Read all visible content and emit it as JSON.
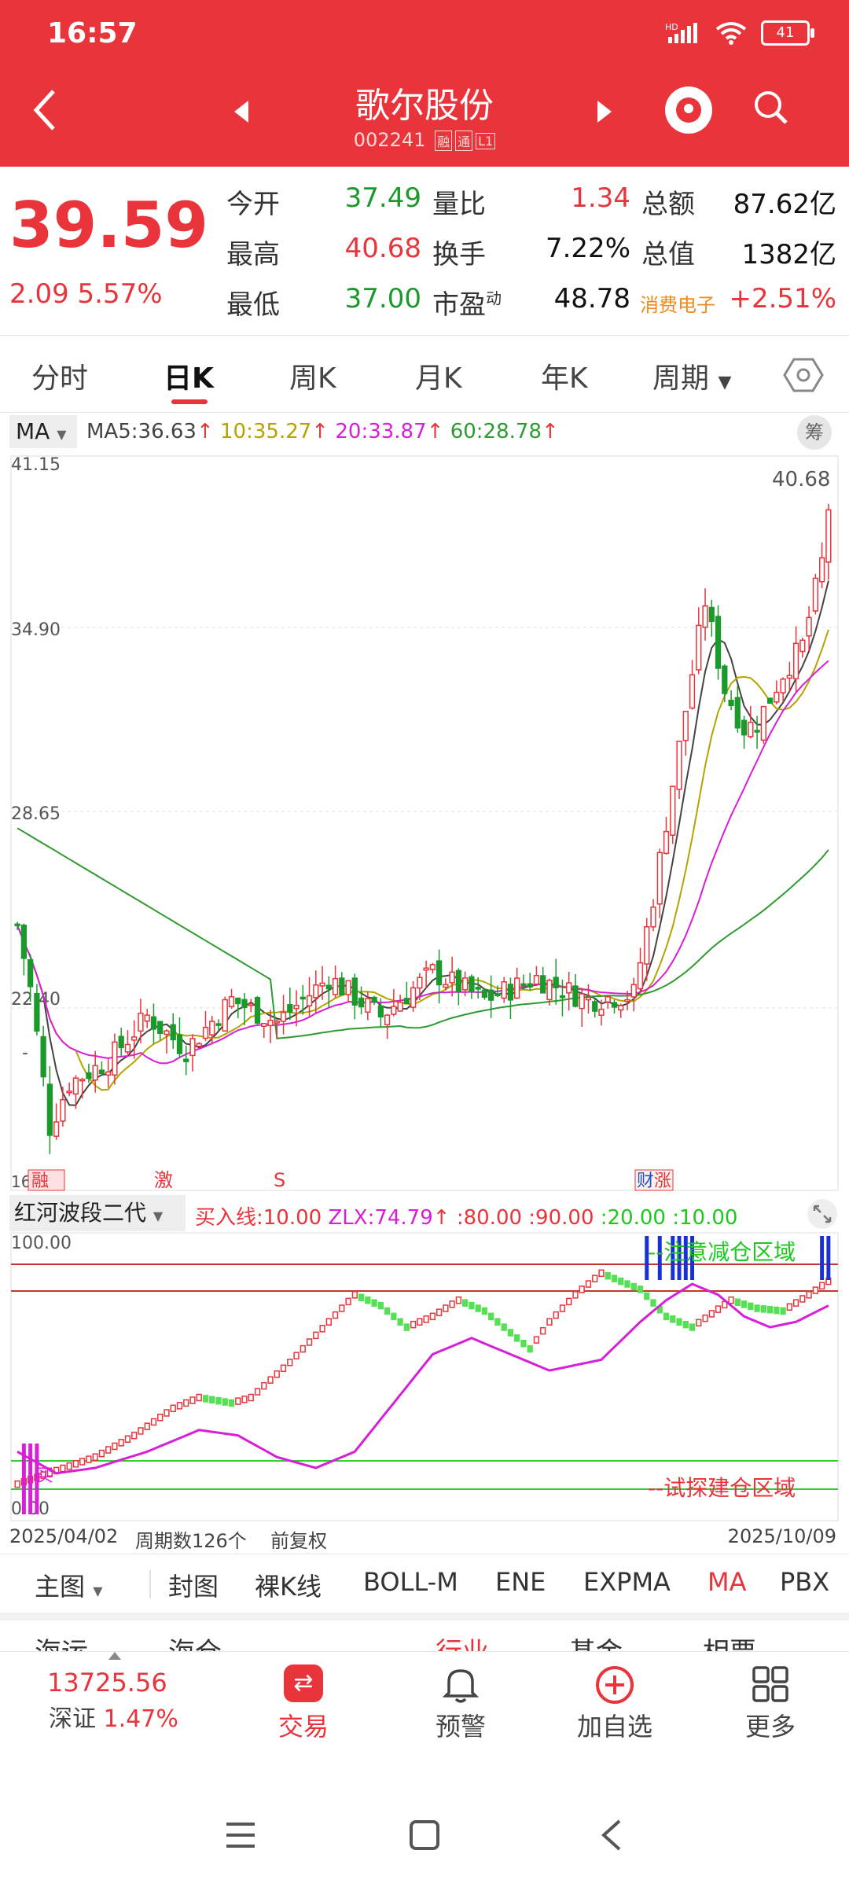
{
  "status": {
    "time": "16:57",
    "battery": "41",
    "network": "HD"
  },
  "header": {
    "title": "歌尔股份",
    "code": "002241",
    "tags": [
      "融",
      "通",
      "L1"
    ]
  },
  "quote": {
    "price": "39.59",
    "change": "2.09 5.57%",
    "rows": [
      {
        "l1": "今开",
        "v1": "37.49",
        "l2": "量比",
        "v2": "1.34",
        "l3": "总额",
        "v3": "87.62亿"
      },
      {
        "l1": "最高",
        "v1": "40.68",
        "l2": "换手",
        "v2": "7.22%",
        "l3": "总值",
        "v3": "1382亿"
      },
      {
        "l1": "最低",
        "v1": "37.00",
        "l2": "市盈",
        "v2": "48.78",
        "l3": "消费电子",
        "v3": "+2.51%"
      }
    ],
    "pe_sup": "动"
  },
  "tabs": [
    "分时",
    "日K",
    "周K",
    "月K",
    "年K",
    "周期"
  ],
  "ma": {
    "select": "MA",
    "ma5": "MA5:36.63",
    "ma10": "10:35.27",
    "ma20": "20:33.87",
    "ma60": "60:28.78",
    "chou": "筹",
    "colors": {
      "ma5": "#444444",
      "ma10": "#b5a300",
      "ma20": "#d61fd6",
      "ma60": "#2f9a2f"
    }
  },
  "kchart": {
    "y_labels": [
      "41.15",
      "34.90",
      "28.65",
      "22.40",
      "-"
    ],
    "y_values": [
      41.15,
      34.9,
      28.65,
      22.4
    ],
    "high_label": "40.68",
    "low_label": "16",
    "markers": [
      "融",
      "激",
      "S",
      "财",
      "涨"
    ]
  },
  "indicator": {
    "select": "红河波段二代",
    "buy": "买入线:10.00",
    "zlx": "ZLX:74.79",
    "rest": ":80.00 :90.00",
    "p20": ":20.00",
    "p10": ":10.00",
    "top_label": "100.00",
    "bottom_label": "0.00",
    "reduce_zone": "--注意减仓区域",
    "build_zone": "--试探建仓区域",
    "buy_mark": "买"
  },
  "chart_data": {
    "type": "candlestick",
    "title": "歌尔股份",
    "x_range": [
      "2025/04/02",
      "2025/10/09"
    ],
    "ylim": [
      16,
      41.15
    ],
    "periods": 126,
    "last_close": 39.59,
    "high": 40.68,
    "ma_last": {
      "MA5": 36.63,
      "MA10": 35.27,
      "MA20": 33.87,
      "MA60": 28.78
    },
    "indicator": {
      "name": "红河波段二代",
      "buy_line": 10.0,
      "ZLX": 74.79,
      "levels": [
        80.0,
        90.0,
        20.0,
        10.0
      ],
      "ylim": [
        0,
        100
      ]
    }
  },
  "footer": {
    "start": "2025/04/02",
    "periods": "周期数126个",
    "adj": "前复权",
    "end": "2025/10/09"
  },
  "ind_tabs": [
    "主图",
    "封图",
    "裸K线",
    "BOLL-M",
    "ENE",
    "EXPMA",
    "MA",
    "PBX"
  ],
  "partial_row": [
    "海运",
    "海仓",
    "行业",
    "基金",
    "相票"
  ],
  "nav": {
    "index_value": "13725.56",
    "index_name": "深证",
    "index_change": "1.47%",
    "items": [
      "交易",
      "预警",
      "加自选",
      "更多"
    ]
  }
}
